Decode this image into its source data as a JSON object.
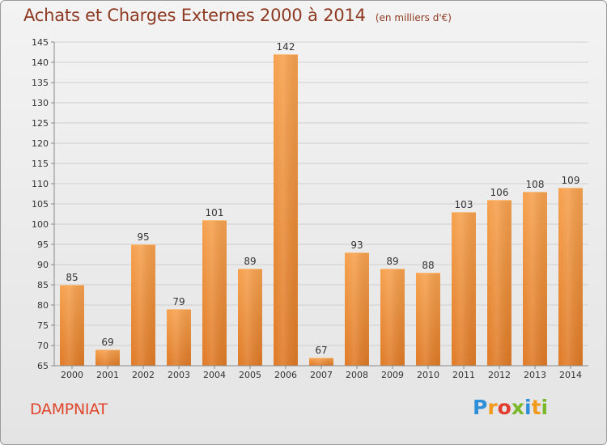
{
  "title": "Achats et Charges Externes 2000 à 2014",
  "subtitle": "(en milliers d'€)",
  "commune": "DAMPNIAT",
  "logo": {
    "letters": [
      "P",
      "r",
      "o",
      "x",
      "i",
      "t",
      "i"
    ],
    "colors": [
      "#2f8fd8",
      "#f29a1c",
      "#e23c2f",
      "#7ab829",
      "#2f8fd8",
      "#f29a1c",
      "#7ab829"
    ]
  },
  "chart_data": {
    "type": "bar",
    "categories": [
      "2000",
      "2001",
      "2002",
      "2003",
      "2004",
      "2005",
      "2006",
      "2007",
      "2008",
      "2009",
      "2010",
      "2011",
      "2012",
      "2013",
      "2014"
    ],
    "values": [
      85,
      69,
      95,
      79,
      101,
      89,
      142,
      67,
      93,
      89,
      88,
      103,
      106,
      108,
      109
    ],
    "value_labels": [
      "85",
      "69",
      "95",
      "79",
      "101",
      "89",
      "142",
      "67",
      "93",
      "89",
      "88",
      "103",
      "106",
      "108",
      "109"
    ],
    "ylim": [
      65,
      145
    ],
    "yticks": [
      65,
      70,
      75,
      80,
      85,
      90,
      95,
      100,
      105,
      110,
      115,
      120,
      125,
      130,
      135,
      140,
      145
    ],
    "grid": true,
    "bar_color": "#f0983e"
  }
}
